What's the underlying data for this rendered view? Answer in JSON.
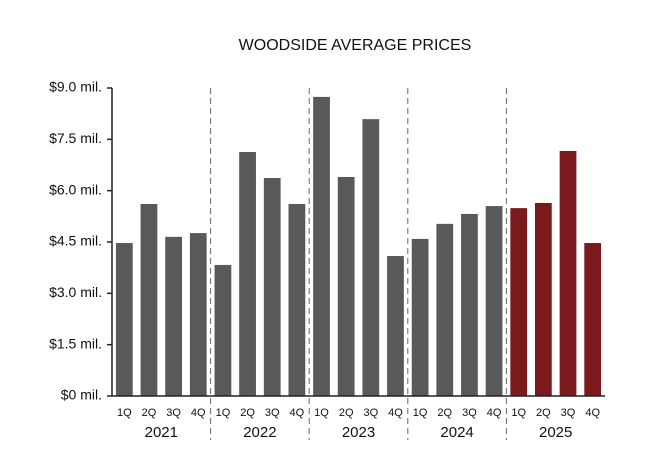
{
  "chart_data": {
    "type": "bar",
    "title": "WOODSIDE AVERAGE PRICES",
    "groups": [
      {
        "name": "2021",
        "categories": [
          "1Q",
          "2Q",
          "3Q",
          "4Q"
        ],
        "values": [
          4.47,
          5.61,
          4.65,
          4.76
        ],
        "color": "#595959"
      },
      {
        "name": "2022",
        "categories": [
          "1Q",
          "2Q",
          "3Q",
          "4Q"
        ],
        "values": [
          3.83,
          7.13,
          6.37,
          5.61
        ],
        "color": "#595959"
      },
      {
        "name": "2023",
        "categories": [
          "1Q",
          "2Q",
          "3Q",
          "4Q"
        ],
        "values": [
          8.74,
          6.4,
          8.09,
          4.09
        ],
        "color": "#595959"
      },
      {
        "name": "2024",
        "categories": [
          "1Q",
          "2Q",
          "3Q",
          "4Q"
        ],
        "values": [
          4.59,
          5.03,
          5.32,
          5.55
        ],
        "color": "#595959"
      },
      {
        "name": "2025",
        "categories": [
          "1Q",
          "2Q",
          "3Q",
          "4Q"
        ],
        "values": [
          5.49,
          5.64,
          7.16,
          4.47
        ],
        "color": "#7b1a1d"
      }
    ],
    "ylim": [
      0,
      9
    ],
    "yticks": [
      {
        "value": 0,
        "label": "$0 mil."
      },
      {
        "value": 1.5,
        "label": "$1.5 mil."
      },
      {
        "value": 3,
        "label": "$3.0 mil."
      },
      {
        "value": 4.5,
        "label": "$4.5 mil."
      },
      {
        "value": 6,
        "label": "$6.0 mil."
      },
      {
        "value": 7.5,
        "label": "$7.5 mil."
      },
      {
        "value": 9,
        "label": "$9.0 mil."
      }
    ]
  }
}
